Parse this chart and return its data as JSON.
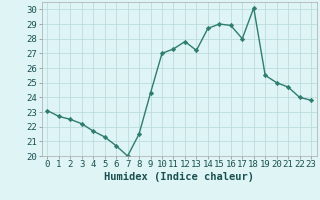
{
  "x": [
    0,
    1,
    2,
    3,
    4,
    5,
    6,
    7,
    8,
    9,
    10,
    11,
    12,
    13,
    14,
    15,
    16,
    17,
    18,
    19,
    20,
    21,
    22,
    23
  ],
  "y": [
    23.1,
    22.7,
    22.5,
    22.2,
    21.7,
    21.3,
    20.7,
    20.0,
    21.5,
    24.3,
    27.0,
    27.3,
    27.8,
    27.2,
    28.7,
    29.0,
    28.9,
    28.0,
    30.1,
    25.5,
    25.0,
    24.7,
    24.0,
    23.8
  ],
  "line_color": "#2e7d6e",
  "marker": "D",
  "marker_size": 2.2,
  "bg_color": "#dff4f4",
  "grid_color": "#b8d8d8",
  "xlabel": "Humidex (Indice chaleur)",
  "ylim": [
    20,
    30.5
  ],
  "yticks": [
    20,
    21,
    22,
    23,
    24,
    25,
    26,
    27,
    28,
    29,
    30
  ],
  "xticks": [
    0,
    1,
    2,
    3,
    4,
    5,
    6,
    7,
    8,
    9,
    10,
    11,
    12,
    13,
    14,
    15,
    16,
    17,
    18,
    19,
    20,
    21,
    22,
    23
  ],
  "xlim": [
    -0.5,
    23.5
  ],
  "tick_label_fontsize": 6.5,
  "xlabel_fontsize": 7.5,
  "line_width": 1.0
}
